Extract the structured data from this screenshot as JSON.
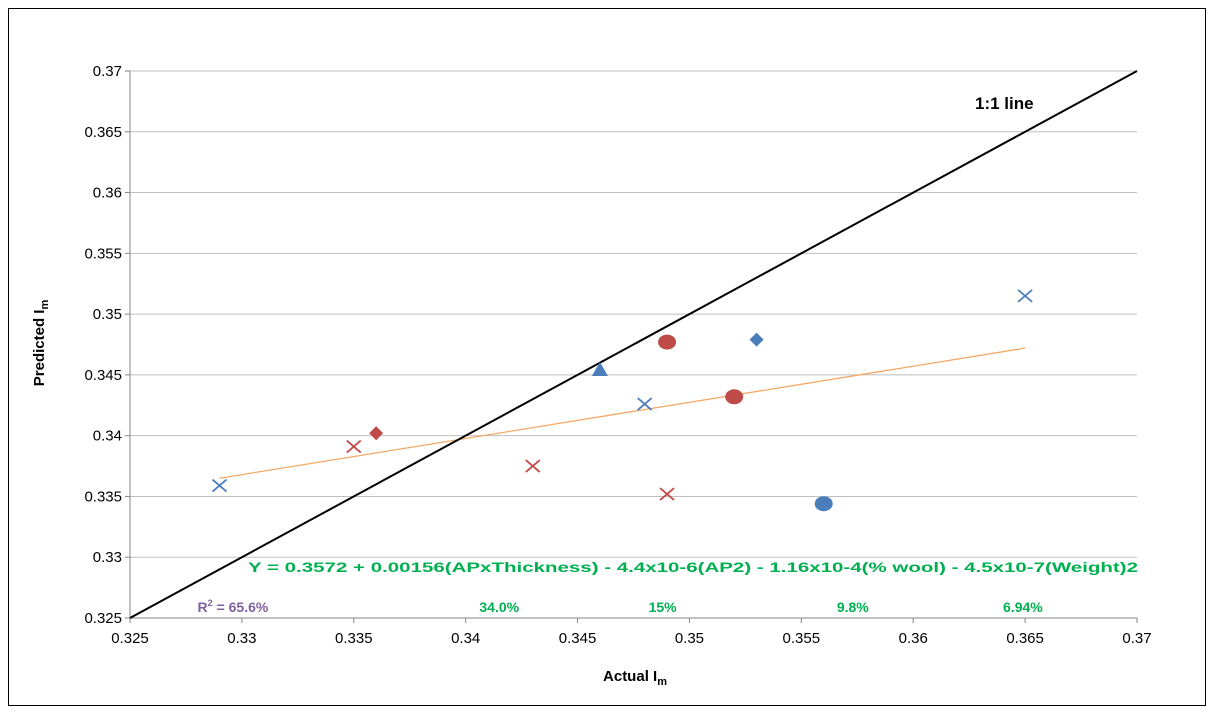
{
  "chart_data": {
    "type": "scatter",
    "xlabel": "Actual I",
    "xlabel_sub": "m",
    "ylabel": "Predicted I",
    "ylabel_sub": "m",
    "xlim": [
      0.325,
      0.37
    ],
    "ylim": [
      0.325,
      0.37
    ],
    "x_ticks": [
      "0.325",
      "0.33",
      "0.335",
      "0.34",
      "0.345",
      "0.35",
      "0.355",
      "0.36",
      "0.365",
      "0.37"
    ],
    "y_ticks": [
      "0.325",
      "0.33",
      "0.335",
      "0.34",
      "0.345",
      "0.35",
      "0.355",
      "0.36",
      "0.365",
      "0.37"
    ],
    "grid": "horizontal",
    "colors": {
      "blue": "#4a7ebb",
      "red": "#be4b48",
      "trend": "#f5a865",
      "identity": "#000000",
      "equation": "#00b050",
      "r2": "#7f61a3"
    },
    "series": [
      {
        "marker": "x",
        "color": "blue",
        "points": [
          [
            0.329,
            0.3359
          ],
          [
            0.348,
            0.3426
          ],
          [
            0.365,
            0.3515
          ]
        ]
      },
      {
        "marker": "x",
        "color": "red",
        "points": [
          [
            0.335,
            0.3391
          ],
          [
            0.343,
            0.3375
          ],
          [
            0.349,
            0.3352
          ]
        ]
      },
      {
        "marker": "circle",
        "color": "red",
        "points": [
          [
            0.349,
            0.3477
          ],
          [
            0.352,
            0.3432
          ]
        ]
      },
      {
        "marker": "circle",
        "color": "blue",
        "points": [
          [
            0.356,
            0.3344
          ]
        ]
      },
      {
        "marker": "diamond",
        "color": "blue",
        "points": [
          [
            0.353,
            0.3479
          ]
        ]
      },
      {
        "marker": "diamond",
        "color": "red",
        "points": [
          [
            0.336,
            0.3402
          ]
        ]
      },
      {
        "marker": "triangle",
        "color": "blue",
        "points": [
          [
            0.346,
            0.3454
          ]
        ]
      }
    ],
    "identity_line": {
      "label": "1:1 line",
      "from": [
        0.325,
        0.325
      ],
      "to": [
        0.37,
        0.37
      ]
    },
    "trendline": {
      "from": [
        0.329,
        0.3365
      ],
      "to": [
        0.365,
        0.3472
      ]
    },
    "equation": "Y = 0.3572 + 0.00156(APxThickness) - 4.4x10-6(AP2) - 1.16x10-4(% wool) - 4.5x10-7(Weight)2",
    "r2_prefix": "R",
    "r2_sup": "2",
    "r2_value": " = 65.6%",
    "term_labels": [
      {
        "text": "34.0%",
        "x": 0.3415
      },
      {
        "text": "15%",
        "x": 0.3488
      },
      {
        "text": "9.8%",
        "x": 0.3573
      },
      {
        "text": "6.94%",
        "x": 0.3649
      }
    ],
    "r2_x": 0.3296
  }
}
